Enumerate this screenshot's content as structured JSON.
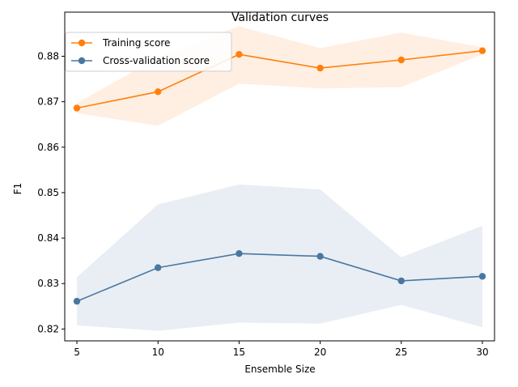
{
  "chart_data": {
    "type": "line",
    "title": "Validation curves",
    "xlabel": "Ensemble Size",
    "ylabel": "F1",
    "x": [
      5,
      10,
      15,
      20,
      25,
      30
    ],
    "xlim": [
      4.25,
      30.75
    ],
    "ylim": [
      0.8174,
      0.8897
    ],
    "xticks": [
      5,
      10,
      15,
      20,
      25,
      30
    ],
    "yticks": [
      0.82,
      0.83,
      0.84,
      0.85,
      0.86,
      0.87,
      0.88
    ],
    "grid": false,
    "legend_position": "top-left",
    "series": [
      {
        "name": "Training score",
        "color": "#ff7f0e",
        "values": [
          0.8686,
          0.8722,
          0.8804,
          0.8774,
          0.8792,
          0.8812
        ],
        "band_lower": [
          0.8675,
          0.8647,
          0.874,
          0.8729,
          0.8732,
          0.8804
        ],
        "band_upper": [
          0.8697,
          0.8797,
          0.8866,
          0.8818,
          0.8852,
          0.882
        ]
      },
      {
        "name": "Cross-validation score",
        "color": "#4a77a1",
        "values": [
          0.8261,
          0.8335,
          0.8366,
          0.836,
          0.8306,
          0.8316
        ],
        "band_lower": [
          0.8208,
          0.8196,
          0.8214,
          0.8212,
          0.8253,
          0.8204
        ],
        "band_upper": [
          0.8314,
          0.8474,
          0.8518,
          0.8507,
          0.8358,
          0.8427
        ]
      }
    ]
  }
}
